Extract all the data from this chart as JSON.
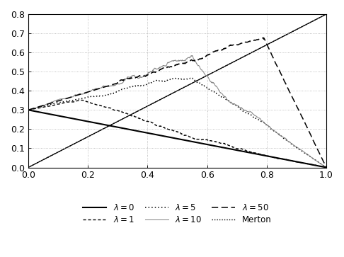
{
  "xlim": [
    0,
    1
  ],
  "ylim": [
    0,
    0.8
  ],
  "xticks": [
    0,
    0.2,
    0.4,
    0.6,
    0.8,
    1.0
  ],
  "yticks": [
    0,
    0.1,
    0.2,
    0.3,
    0.4,
    0.5,
    0.6,
    0.7,
    0.8
  ],
  "background_color": "#ffffff",
  "grid_color": "#b0b0b0",
  "line_color": "#000000",
  "gray_color": "#888888",
  "figsize": [
    4.86,
    3.63
  ],
  "dpi": 100
}
